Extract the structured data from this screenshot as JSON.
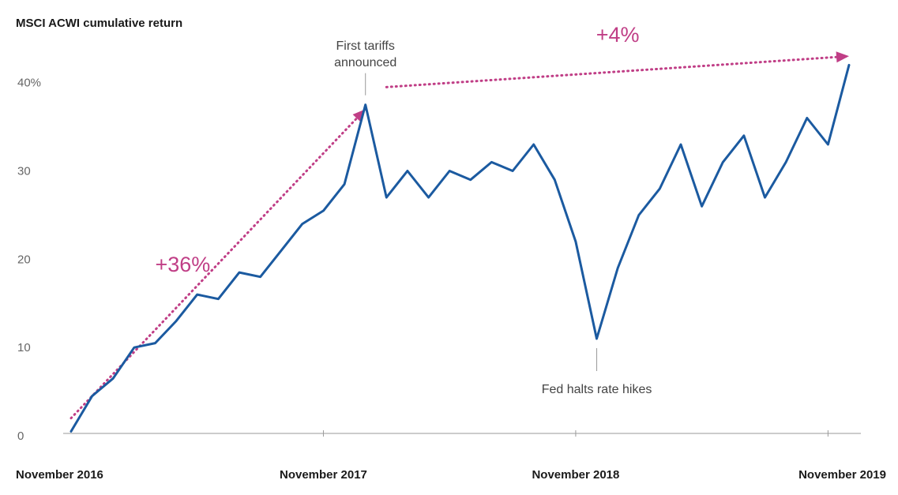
{
  "chart_data": {
    "type": "line",
    "title": "MSCI ACWI cumulative return",
    "xlabel": "",
    "ylabel": "",
    "ylim": [
      0,
      44
    ],
    "yticks": [
      0,
      10,
      20,
      30,
      40
    ],
    "ytick_labels": [
      "0",
      "10",
      "20",
      "30",
      "40%"
    ],
    "x_tick_labels": [
      "November 2016",
      "November 2017",
      "November 2018",
      "November 2019"
    ],
    "grid": false,
    "legend": "none",
    "line_color": "#1b5aa0",
    "annotation_color": "#c03e86",
    "x": [
      "2016-11",
      "2016-12",
      "2017-01",
      "2017-02",
      "2017-03",
      "2017-04",
      "2017-05",
      "2017-06",
      "2017-07",
      "2017-08",
      "2017-09",
      "2017-10",
      "2017-11",
      "2017-12",
      "2018-01",
      "2018-02",
      "2018-03",
      "2018-04",
      "2018-05",
      "2018-06",
      "2018-07",
      "2018-08",
      "2018-09",
      "2018-10",
      "2018-11",
      "2018-12",
      "2019-01",
      "2019-02",
      "2019-03",
      "2019-04",
      "2019-05",
      "2019-06",
      "2019-07",
      "2019-08",
      "2019-09",
      "2019-10",
      "2019-11",
      "2019-12"
    ],
    "series": [
      {
        "values": [
          0.5,
          4.5,
          6.5,
          10,
          10.5,
          13,
          16,
          15.5,
          18.5,
          18,
          21,
          24,
          25.5,
          28.5,
          37.5,
          27,
          30,
          27,
          30,
          29,
          31,
          30,
          33,
          29,
          22,
          11,
          19,
          25,
          28,
          33,
          26,
          31,
          34,
          27,
          31,
          36,
          33,
          42
        ]
      }
    ],
    "annotations": [
      {
        "text": "First tariffs announced",
        "x": "2018-01",
        "y": 37.5
      },
      {
        "text": "Fed halts rate hikes",
        "x": "2018-12",
        "y": 11
      }
    ],
    "trend_labels": [
      {
        "text": "+36%",
        "from": [
          "2016-11",
          2
        ],
        "to": [
          "2018-01",
          37
        ]
      },
      {
        "text": "+4%",
        "from": [
          "2018-02",
          39.5
        ],
        "to": [
          "2019-12",
          43
        ]
      }
    ]
  }
}
